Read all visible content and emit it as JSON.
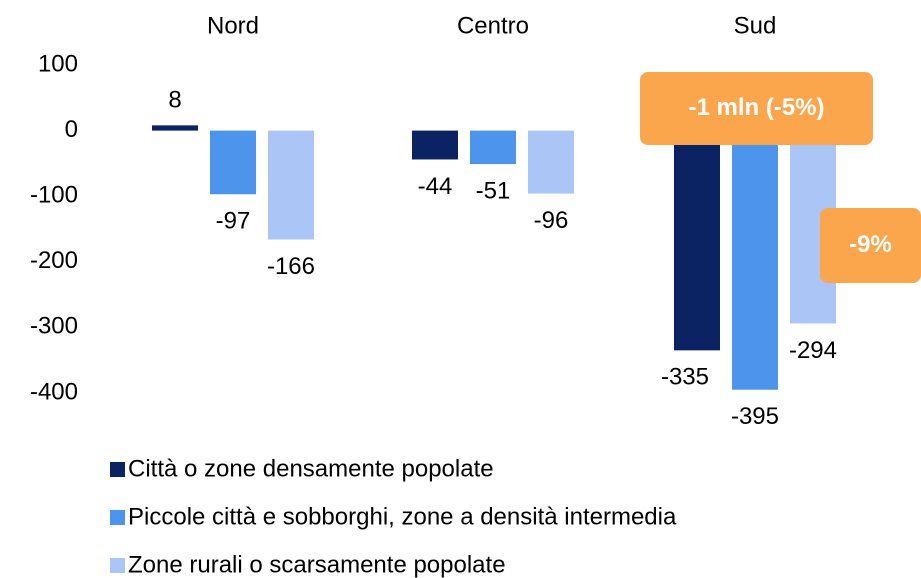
{
  "chart_data": {
    "type": "bar",
    "categories": [
      "Nord",
      "Centro",
      "Sud"
    ],
    "series": [
      {
        "name": "Città o zone densamente popolate",
        "color": "#0b2263",
        "values": [
          8,
          -44,
          -335
        ]
      },
      {
        "name": "Piccole città e sobborghi, zone a densità intermedia",
        "color": "#4d94ec",
        "values": [
          -97,
          -51,
          -395
        ]
      },
      {
        "name": "Zone rurali o scarsamente popolate",
        "color": "#abc5f6",
        "values": [
          -166,
          -96,
          -294
        ]
      }
    ],
    "ylim": [
      -400,
      100
    ],
    "yticks": [
      -400,
      -300,
      -200,
      -100,
      0,
      100
    ],
    "grid": false,
    "annotations": [
      {
        "text": "-1 mln (-5%)",
        "color": "#fba54c"
      },
      {
        "text": "-9%",
        "color": "#fba54c"
      }
    ]
  }
}
